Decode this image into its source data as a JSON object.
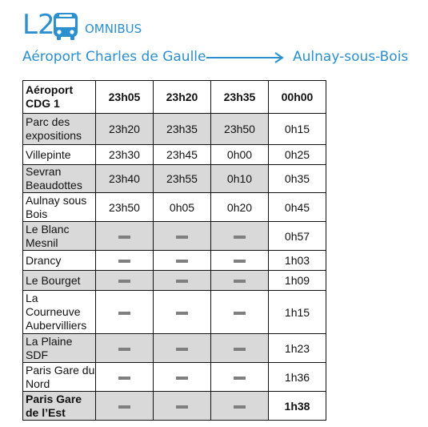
{
  "header": {
    "line": "L2",
    "service": "OMNIBUS",
    "origin": "Aéroport Charles de Gaulle",
    "destination": "Aulnay-sous-Bois",
    "accent_color": "#2b8fd0",
    "icons": [
      "bus-icon",
      "arrow-right-icon"
    ]
  },
  "timetable": {
    "first_header": "Aéroport CDG 1",
    "departures": [
      "23h05",
      "23h20",
      "23h35",
      "00h00"
    ],
    "rows": [
      {
        "stop": "Parc des expositions",
        "times": [
          "23h20",
          "23h35",
          "23h50",
          "0h15"
        ]
      },
      {
        "stop": "Villepinte",
        "times": [
          "23h30",
          "23h45",
          "0h00",
          "0h25"
        ]
      },
      {
        "stop": "Sevran Beaudottes",
        "times": [
          "23h40",
          "23h55",
          "0h10",
          "0h35"
        ]
      },
      {
        "stop": "Aulnay sous Bois",
        "times": [
          "23h50",
          "0h05",
          "0h20",
          "0h45"
        ]
      },
      {
        "stop": "Le Blanc Mesnil",
        "times": [
          "—",
          "—",
          "—",
          "0h57"
        ]
      },
      {
        "stop": "Drancy",
        "times": [
          "—",
          "—",
          "—",
          "1h03"
        ]
      },
      {
        "stop": "Le Bourget",
        "times": [
          "—",
          "—",
          "—",
          "1h09"
        ]
      },
      {
        "stop": "La Courneuve Aubervilliers",
        "times": [
          "—",
          "—",
          "—",
          "1h15"
        ]
      },
      {
        "stop": "La Plaine SDF",
        "times": [
          "—",
          "—",
          "—",
          "1h23"
        ]
      },
      {
        "stop": "Paris Gare du Nord",
        "times": [
          "—",
          "—",
          "—",
          "1h36"
        ]
      },
      {
        "stop": "Paris Gare de l’Est",
        "times": [
          "—",
          "—",
          "—",
          "1h38"
        ]
      }
    ]
  }
}
